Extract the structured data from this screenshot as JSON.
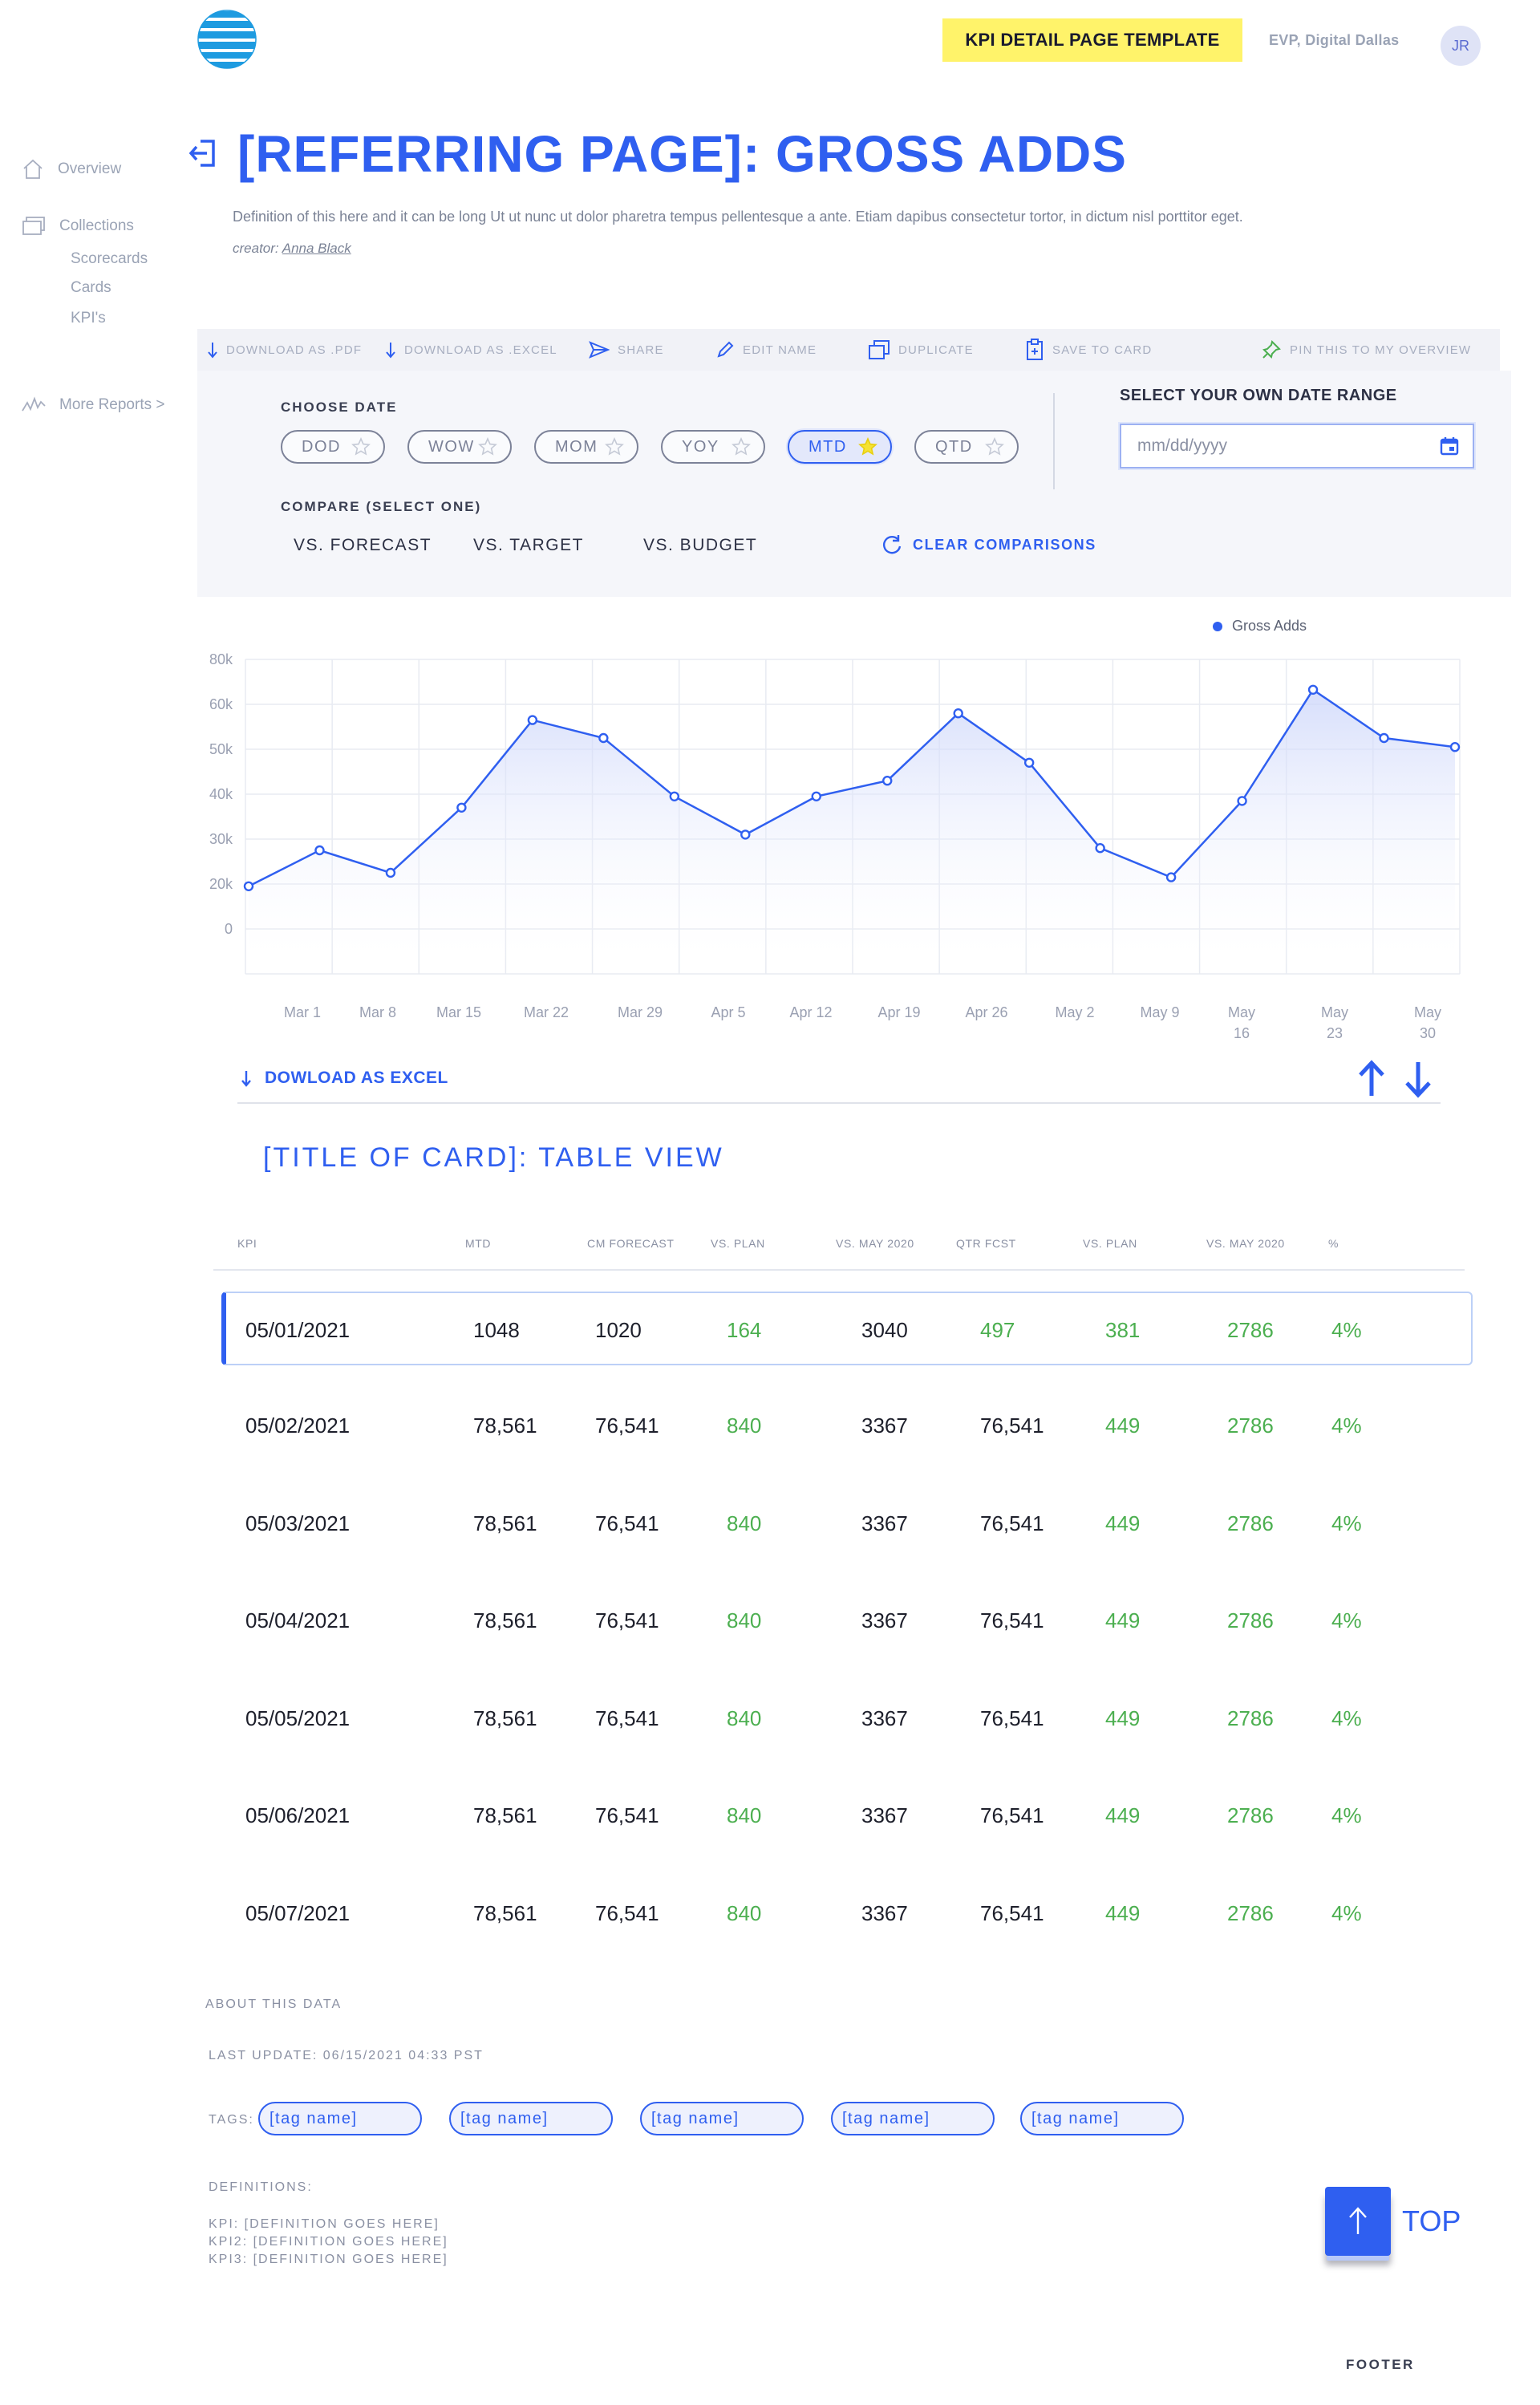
{
  "header": {
    "template_badge": "KPI DETAIL PAGE TEMPLATE",
    "user_role": "EVP, Digital Dallas",
    "avatar_initials": "JR"
  },
  "sidebar": {
    "overview": "Overview",
    "collections": "Collections",
    "sub_items": [
      "Scorecards",
      "Cards",
      "KPI's"
    ],
    "more_reports": "More Reports >"
  },
  "page": {
    "title": "[REFERRING PAGE]: GROSS ADDS",
    "definition": "Definition of this here and it can be long Ut ut nunc ut dolor pharetra tempus pellentesque a ante. Etiam dapibus consectetur tortor, in dictum nisl porttitor eget.",
    "creator_label": "creator:",
    "creator_name": "Anna Black"
  },
  "toolbar": {
    "download_pdf": "DOWNLOAD AS .PDF",
    "download_excel": "DOWNLOAD AS .EXCEL",
    "share": "SHARE",
    "edit_name": "EDIT NAME",
    "duplicate": "DUPLICATE",
    "save_to_card": "SAVE TO CARD",
    "pin": "PIN THIS TO MY OVERVIEW"
  },
  "filters": {
    "choose_date_label": "CHOOSE DATE",
    "date_options": [
      "DOD",
      "WOW",
      "MOM",
      "YOY",
      "MTD",
      "QTD"
    ],
    "selected_date_option": "MTD",
    "compare_label": "COMPARE (SELECT ONE)",
    "compare_options": [
      "VS. FORECAST",
      "VS. TARGET",
      "VS. BUDGET"
    ],
    "clear_comparisons": "CLEAR COMPARISONS",
    "date_range_label": "SELECT YOUR OWN DATE RANGE",
    "date_input_placeholder": "mm/dd/yyyy"
  },
  "chart_data": {
    "type": "line",
    "legend": [
      "Gross Adds"
    ],
    "series": [
      {
        "name": "Gross Adds",
        "values": [
          19000,
          27500,
          22500,
          37000,
          56500,
          52500,
          39500,
          31000,
          39500,
          43000,
          58000,
          47000,
          28000,
          21500,
          38500,
          66500,
          52500,
          50500
        ]
      }
    ],
    "x_tick_labels": [
      "Mar 1",
      "Mar 8",
      "Mar 15",
      "Mar 22",
      "Mar 29",
      "Apr 5",
      "Apr 12",
      "Apr 19",
      "Apr 26",
      "May 2",
      "May 9",
      "May 16",
      "May 23",
      "May 30"
    ],
    "y_tick_labels": [
      "80k",
      "60k",
      "50k",
      "40k",
      "30k",
      "20k",
      "0"
    ],
    "color": "#2f5ff0",
    "grid": true,
    "legend_position": "top-right"
  },
  "download_excel_link": "DOWLOAD AS EXCEL",
  "table": {
    "title": "[TITLE OF CARD]: TABLE VIEW",
    "columns": [
      "KPI",
      "MTD",
      "CM FORECAST",
      "VS. PLAN",
      "VS. MAY 2020",
      "QTR FCST",
      "VS. PLAN",
      "VS. MAY 2020",
      "%"
    ],
    "rows": [
      [
        "05/01/2021",
        "1048",
        "1020",
        "164",
        "3040",
        "497",
        "381",
        "2786",
        "4%"
      ],
      [
        "05/02/2021",
        "78,561",
        "76,541",
        "840",
        "3367",
        "76,541",
        "449",
        "2786",
        "4%"
      ],
      [
        "05/03/2021",
        "78,561",
        "76,541",
        "840",
        "3367",
        "76,541",
        "449",
        "2786",
        "4%"
      ],
      [
        "05/04/2021",
        "78,561",
        "76,541",
        "840",
        "3367",
        "76,541",
        "449",
        "2786",
        "4%"
      ],
      [
        "05/05/2021",
        "78,561",
        "76,541",
        "840",
        "3367",
        "76,541",
        "449",
        "2786",
        "4%"
      ],
      [
        "05/06/2021",
        "78,561",
        "76,541",
        "840",
        "3367",
        "76,541",
        "449",
        "2786",
        "4%"
      ],
      [
        "05/07/2021",
        "78,561",
        "76,541",
        "840",
        "3367",
        "76,541",
        "449",
        "2786",
        "4%"
      ]
    ]
  },
  "about": {
    "title": "ABOUT THIS DATA",
    "last_update": "LAST UPDATE:  06/15/2021 04:33 PST",
    "tags_label": "TAGS:",
    "tags": [
      "[tag name]",
      "[tag name]",
      "[tag name]",
      "[tag name]",
      "[tag name]"
    ],
    "definitions_label": "DEFINITIONS:",
    "definitions": [
      "KPI: [DEFINITION GOES HERE]",
      "KPI2: [DEFINITION GOES HERE]",
      "KPI3: [DEFINITION GOES HERE]"
    ]
  },
  "top_button_label": "TOP",
  "footer": "FOOTER"
}
